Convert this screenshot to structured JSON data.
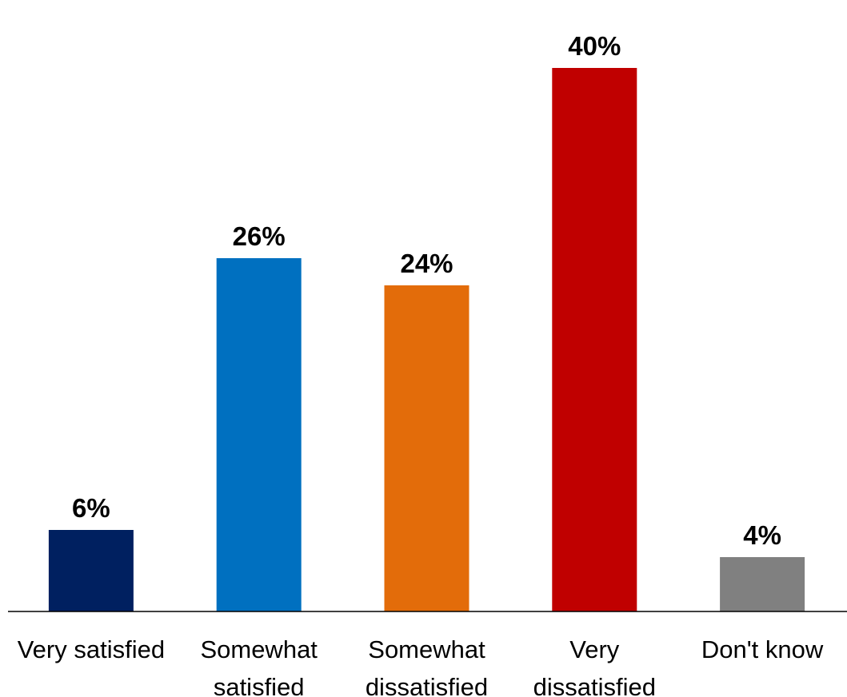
{
  "chart_data": {
    "type": "bar",
    "categories": [
      [
        "Very satisfied"
      ],
      [
        "Somewhat",
        "satisfied"
      ],
      [
        "Somewhat",
        "dissatisfied"
      ],
      [
        "Very",
        "dissatisfied"
      ],
      [
        "Don't know"
      ]
    ],
    "values": [
      6,
      26,
      24,
      40,
      4
    ],
    "value_labels": [
      "6%",
      "26%",
      "24%",
      "40%",
      "4%"
    ],
    "colors": [
      "#002060",
      "#0070C0",
      "#E36C0A",
      "#C00000",
      "#808080"
    ],
    "title": "",
    "xlabel": "",
    "ylabel": "",
    "ylim": [
      0,
      40
    ],
    "grid": false,
    "legend": "none"
  }
}
